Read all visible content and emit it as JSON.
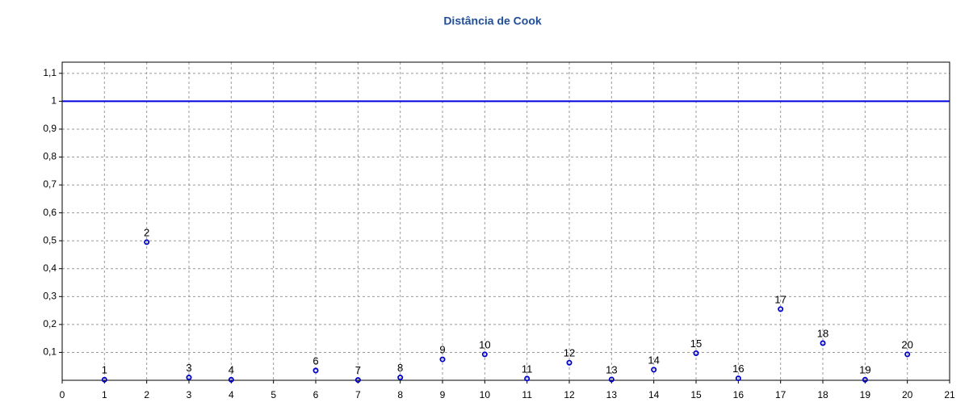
{
  "chart_data": {
    "type": "scatter",
    "title": "Distância de Cook",
    "x": [
      1,
      2,
      3,
      4,
      6,
      7,
      8,
      9,
      10,
      11,
      12,
      13,
      14,
      15,
      16,
      17,
      18,
      19,
      20
    ],
    "values": [
      0.002,
      0.495,
      0.01,
      0.002,
      0.035,
      0.001,
      0.01,
      0.075,
      0.093,
      0.006,
      0.063,
      0.003,
      0.038,
      0.097,
      0.007,
      0.255,
      0.133,
      0.002,
      0.093
    ],
    "color": "#0000cc",
    "reference_line": 1,
    "reference_color": "#0000dd",
    "xlim": [
      0,
      21
    ],
    "xticks": [
      0,
      1,
      2,
      3,
      4,
      5,
      6,
      7,
      8,
      9,
      10,
      11,
      12,
      13,
      14,
      15,
      16,
      17,
      18,
      19,
      20,
      21
    ],
    "ylim": [
      0,
      1.14
    ],
    "yticks": [
      {
        "value": 0.1,
        "label": "0,1"
      },
      {
        "value": 0.2,
        "label": "0,2"
      },
      {
        "value": 0.3,
        "label": "0,3"
      },
      {
        "value": 0.4,
        "label": "0,4"
      },
      {
        "value": 0.5,
        "label": "0,5"
      },
      {
        "value": 0.6,
        "label": "0,6"
      },
      {
        "value": 0.7,
        "label": "0,7"
      },
      {
        "value": 0.8,
        "label": "0,8"
      },
      {
        "value": 0.9,
        "label": "0,9"
      },
      1,
      {
        "value": 1.1,
        "label": "1,1"
      }
    ],
    "grid": true
  }
}
